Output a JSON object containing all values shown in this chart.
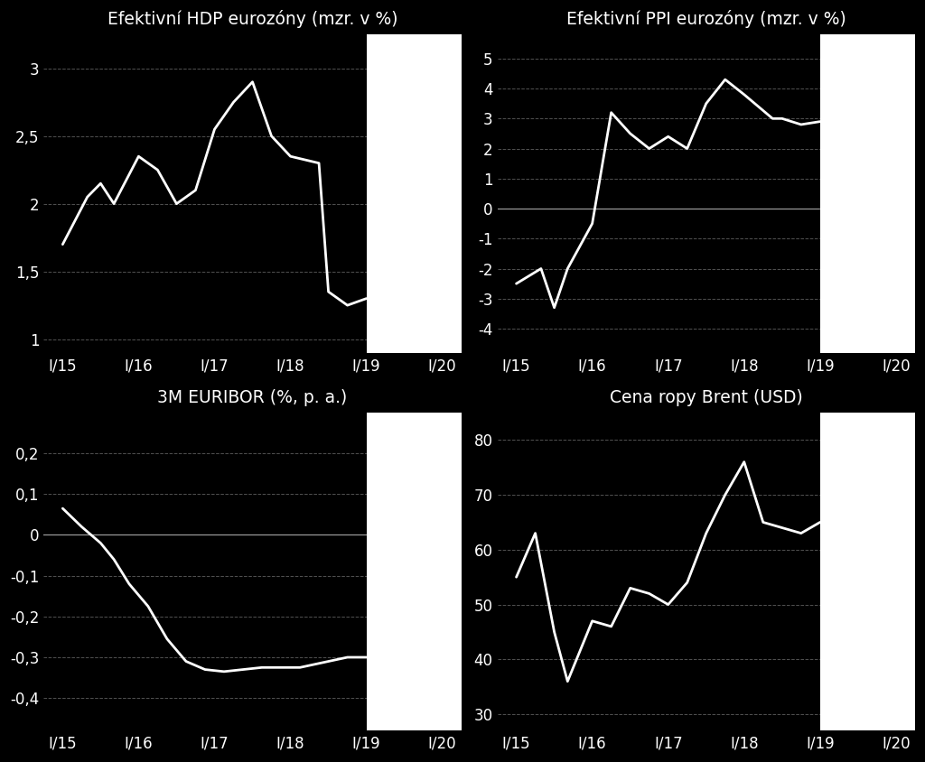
{
  "background_color": "#000000",
  "text_color": "#ffffff",
  "line_color": "#ffffff",
  "forecast_color": "#ffffff",
  "grid_color": "#666666",
  "titles": [
    "Efektivní HDP eurozóny (mzr. v %)",
    "Efektivní PPI eurozóny (mzr. v %)",
    "3M EURIBOR (%, p. a.)",
    "Cena ropy Brent (USD)"
  ],
  "xtick_labels": [
    "I/15",
    "I/16",
    "I/17",
    "I/18",
    "I/19",
    "I/20"
  ],
  "xtick_positions": [
    0,
    4,
    8,
    12,
    16,
    20
  ],
  "xlim": [
    -1,
    21
  ],
  "forecast_start_x": 16,
  "hdp": {
    "x": [
      0,
      1.3,
      2,
      2.7,
      4,
      5,
      6,
      7,
      8,
      9,
      10,
      11,
      12,
      13.5,
      14,
      15,
      16
    ],
    "y": [
      1.7,
      2.05,
      2.15,
      2.0,
      2.35,
      2.25,
      2.0,
      2.1,
      2.55,
      2.75,
      2.9,
      2.5,
      2.35,
      2.3,
      1.35,
      1.25,
      1.3
    ],
    "ylim": [
      0.9,
      3.25
    ],
    "yticks": [
      1.0,
      1.5,
      2.0,
      2.5,
      3.0
    ]
  },
  "ppi": {
    "x": [
      0,
      1.3,
      2,
      2.7,
      4,
      5,
      6,
      7,
      8,
      9,
      10,
      11,
      12,
      13.5,
      14,
      15,
      16
    ],
    "y": [
      -2.5,
      -2.0,
      -3.3,
      -2.0,
      -0.5,
      3.2,
      2.5,
      2.0,
      2.4,
      2.0,
      3.5,
      4.3,
      3.8,
      3.0,
      3.0,
      2.8,
      2.9
    ],
    "ylim": [
      -4.8,
      5.8
    ],
    "yticks": [
      -4,
      -3,
      -2,
      -1,
      0,
      1,
      2,
      3,
      4,
      5
    ]
  },
  "euribor": {
    "x": [
      0,
      1,
      2,
      2.7,
      3.5,
      4.5,
      5.5,
      6.5,
      7.5,
      8.5,
      9.5,
      10.5,
      11.5,
      12.5,
      14,
      15,
      16
    ],
    "y": [
      0.065,
      0.02,
      -0.02,
      -0.06,
      -0.12,
      -0.175,
      -0.255,
      -0.31,
      -0.33,
      -0.335,
      -0.33,
      -0.325,
      -0.325,
      -0.325,
      -0.31,
      -0.3,
      -0.3
    ],
    "ylim": [
      -0.48,
      0.3
    ],
    "yticks": [
      -0.4,
      -0.3,
      -0.2,
      -0.1,
      0.0,
      0.1,
      0.2
    ]
  },
  "brent": {
    "x": [
      0,
      1,
      2,
      2.7,
      4,
      5,
      6,
      7,
      8,
      9,
      10,
      11,
      12,
      13,
      14,
      15,
      16
    ],
    "y": [
      55,
      63,
      45,
      36,
      47,
      46,
      53,
      52,
      50,
      54,
      63,
      70,
      76,
      65,
      64,
      63,
      65
    ],
    "ylim": [
      27,
      85
    ],
    "yticks": [
      30,
      40,
      50,
      60,
      70,
      80
    ]
  }
}
